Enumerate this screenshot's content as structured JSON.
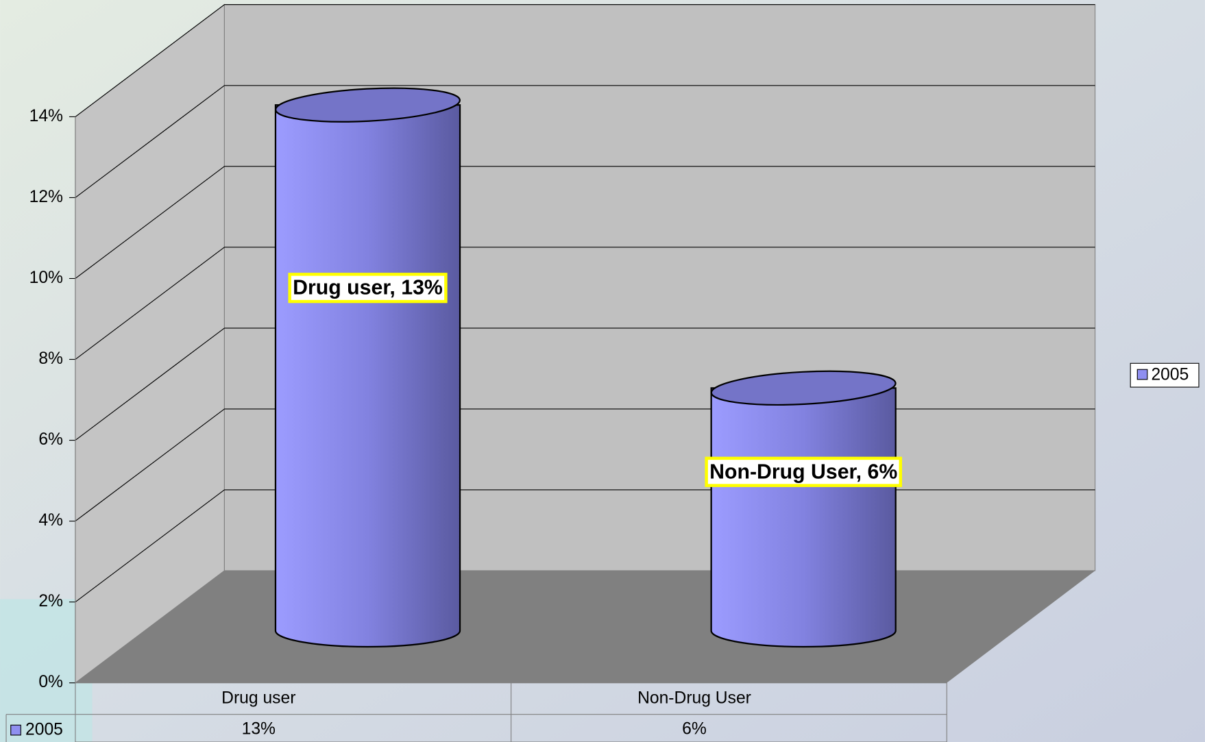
{
  "chart_data": {
    "type": "bar",
    "categories": [
      "Drug user",
      "Non-Drug User"
    ],
    "series": [
      {
        "name": "2005",
        "color": "#8f8ff0",
        "values": [
          13,
          6
        ],
        "value_labels": [
          "Drug user, 13%",
          "Non-Drug User, 6%"
        ],
        "table_labels": [
          "13%",
          "6%"
        ]
      }
    ],
    "ylim": [
      0,
      14
    ],
    "yticks": [
      {
        "value": 0,
        "label": "0%"
      },
      {
        "value": 2,
        "label": "2%"
      },
      {
        "value": 4,
        "label": "4%"
      },
      {
        "value": 6,
        "label": "6%"
      },
      {
        "value": 8,
        "label": "8%"
      },
      {
        "value": 10,
        "label": "10%"
      },
      {
        "value": 12,
        "label": "12%"
      },
      {
        "value": 14,
        "label": "14%"
      }
    ],
    "grid": true,
    "legend": "right"
  }
}
